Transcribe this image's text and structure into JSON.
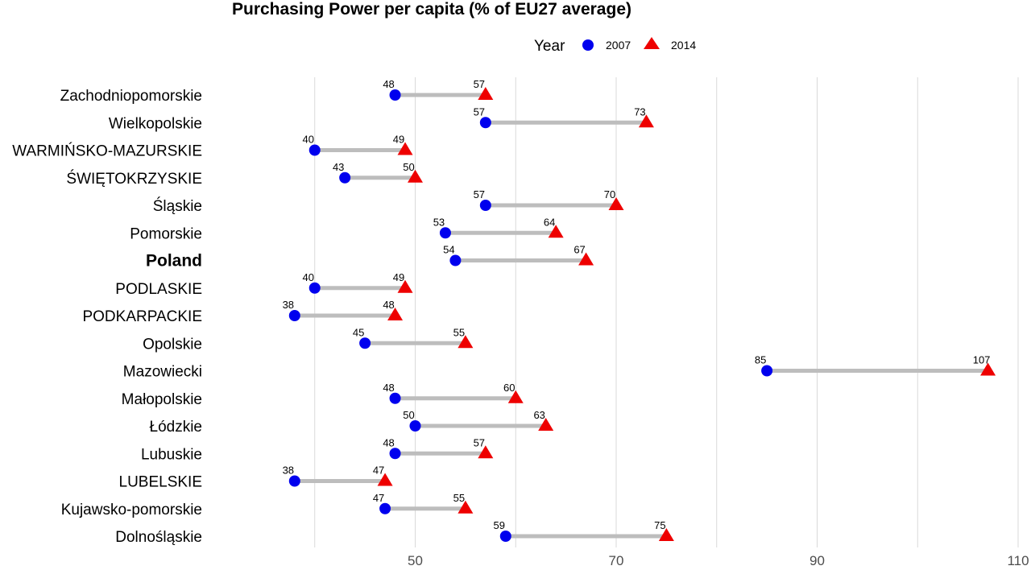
{
  "chart_data": {
    "type": "dumbbell",
    "title": "Purchasing Power per capita (% of EU27 average)",
    "legend": {
      "title": "Year",
      "placement": "top",
      "entries": [
        {
          "name": "2007",
          "color": "#0000ee",
          "shape": "circle"
        },
        {
          "name": "2014",
          "color": "#ee0000",
          "shape": "triangle"
        }
      ]
    },
    "xlim": [
      30,
      110
    ],
    "x_ticks": [
      50,
      70,
      90,
      110
    ],
    "grid": true,
    "categories": [
      "Zachodniopomorskie",
      "Wielkopolskie",
      "WARMIŃSKO-MAZURSKIE",
      "ŚWIĘTOKRZYSKIE",
      "Śląskie",
      "Pomorskie",
      "Poland",
      "PODLASKIE",
      "PODKARPACKIE",
      "Opolskie",
      "Mazowiecki",
      "Małopolskie",
      "Łódzkie",
      "Lubuskie",
      "LUBELSKIE",
      "Kujawsko-pomorskie",
      "Dolnośląskie"
    ],
    "emphasized_category": "Poland",
    "series": [
      {
        "name": "2007",
        "values": [
          48,
          57,
          40,
          43,
          57,
          53,
          54,
          40,
          38,
          45,
          85,
          48,
          50,
          48,
          38,
          47,
          59
        ]
      },
      {
        "name": "2014",
        "values": [
          57,
          73,
          49,
          50,
          70,
          64,
          67,
          49,
          48,
          55,
          107,
          60,
          63,
          57,
          47,
          55,
          75
        ]
      }
    ]
  }
}
